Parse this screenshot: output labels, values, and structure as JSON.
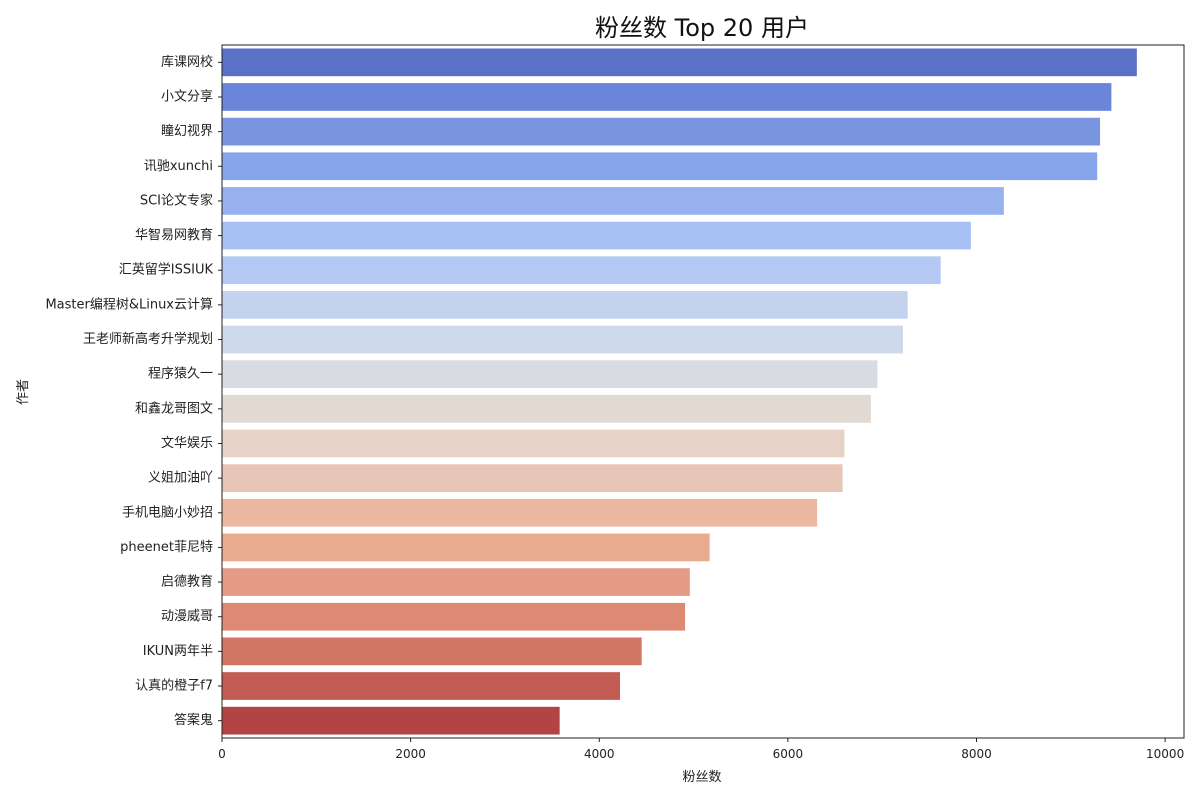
{
  "chart_data": {
    "type": "bar",
    "orientation": "horizontal",
    "title": "粉丝数 Top 20 用户",
    "xlabel": "粉丝数",
    "ylabel": "作者",
    "xlim": [
      0,
      10200
    ],
    "xticks": [
      0,
      2000,
      4000,
      6000,
      8000,
      10000
    ],
    "grid": false,
    "categories": [
      "库课网校",
      "小文分享",
      "瞳幻视界",
      "讯驰xunchi",
      "SCI论文专家",
      "华智易网教育",
      "汇英留学ISSIUK",
      "Master编程树&Linux云计算",
      "王老师新高考升学规划",
      "程序猿久一",
      "和鑫龙哥图文",
      "文华娱乐",
      "义姐加油吖",
      "手机电脑小妙招",
      "pheenet菲尼特",
      "启德教育",
      "动漫威哥",
      "IKUN两年半",
      "认真的橙子f7",
      "答案鬼"
    ],
    "values": [
      9700,
      9430,
      9310,
      9280,
      8290,
      7940,
      7620,
      7270,
      7220,
      6950,
      6880,
      6600,
      6580,
      6310,
      5170,
      4960,
      4910,
      4450,
      4220,
      3580
    ],
    "colors": [
      "#5b71c8",
      "#6a85da",
      "#7a95e0",
      "#87a5eb",
      "#96b1ee",
      "#a7c1f5",
      "#b3c8f2",
      "#c3d3ee",
      "#cdd8ea",
      "#d9dbe3",
      "#e2d9d3",
      "#e6d2c6",
      "#e8c6b7",
      "#ebb9a1",
      "#e9aa8f",
      "#e39b85",
      "#dd8974",
      "#d07663",
      "#c35c52",
      "#b24544"
    ]
  }
}
